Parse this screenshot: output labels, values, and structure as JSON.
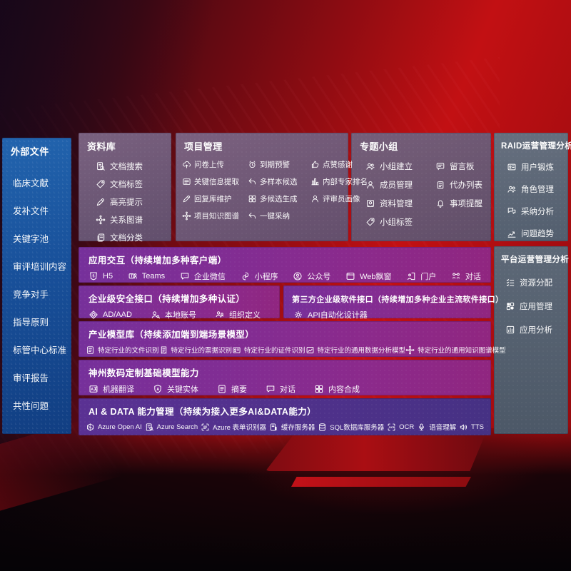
{
  "colors": {
    "background_red": "#b80e13",
    "sidebar_blue": "#1b57a3",
    "module_purple": "#842e93",
    "module_indigo": "#4d3187",
    "panel_mauve": "#6f5d7a",
    "panel_gray": "#5d6878",
    "text": "#ffffff"
  },
  "sidebar": {
    "title": "外部文件",
    "items": [
      {
        "label": "临床文献"
      },
      {
        "label": "发补文件"
      },
      {
        "label": "关键字池"
      },
      {
        "label": "审评培训内容"
      },
      {
        "label": "竞争对手"
      },
      {
        "label": "指导原则"
      },
      {
        "label": "标管中心标准"
      },
      {
        "label": "审评报告"
      },
      {
        "label": "共性问题"
      }
    ]
  },
  "panels": {
    "library": {
      "title": "资料库",
      "items": [
        {
          "icon": "doc-search",
          "label": "文档搜索"
        },
        {
          "icon": "tag",
          "label": "文档标签"
        },
        {
          "icon": "pencil",
          "label": "高亮提示"
        },
        {
          "icon": "node-graph",
          "label": "关系图谱"
        },
        {
          "icon": "doc-copy",
          "label": "文档分类"
        }
      ]
    },
    "project": {
      "title": "项目管理",
      "items": [
        {
          "icon": "cloud-upload",
          "label": "问卷上传"
        },
        {
          "icon": "alarm-clock",
          "label": "到期预警"
        },
        {
          "icon": "thumbs-up",
          "label": "点赞感谢"
        },
        {
          "icon": "info-card",
          "label": "关键信息提取"
        },
        {
          "icon": "reply-arrow",
          "label": "多样本候选"
        },
        {
          "icon": "bar-chart",
          "label": "内部专家排名"
        },
        {
          "icon": "pencil",
          "label": "回复库维护"
        },
        {
          "icon": "grid-four",
          "label": "多候选生成"
        },
        {
          "icon": "user",
          "label": "评审员画像"
        },
        {
          "icon": "node-graph",
          "label": "项目知识图谱"
        },
        {
          "icon": "reply-arrow",
          "label": "一键采纳"
        }
      ]
    },
    "groups": {
      "title": "专题小组",
      "items": [
        {
          "icon": "user-group",
          "label": "小组建立"
        },
        {
          "icon": "message-board",
          "label": "留言板"
        },
        {
          "icon": "user",
          "label": "成员管理"
        },
        {
          "icon": "clipboard",
          "label": "代办列表"
        },
        {
          "icon": "photo-album",
          "label": "资料管理"
        },
        {
          "icon": "bell",
          "label": "事项提醒"
        },
        {
          "icon": "tag",
          "label": "小组标签"
        }
      ]
    },
    "raid": {
      "title": "RAID运营管理分析",
      "items": [
        {
          "icon": "id-card",
          "label": "用户锻炼"
        },
        {
          "icon": "user-group",
          "label": "角色管理"
        },
        {
          "icon": "qa-bubbles",
          "label": "采纳分析"
        },
        {
          "icon": "trend-line",
          "label": "问题趋势"
        }
      ]
    },
    "platform": {
      "title": "平台运营管理分析",
      "items": [
        {
          "icon": "check-list",
          "label": "资源分配"
        },
        {
          "icon": "app-grid",
          "label": "应用管理"
        },
        {
          "icon": "report-chart",
          "label": "应用分析"
        }
      ]
    },
    "interaction": {
      "title": "应用交互（持续增加多种客户端）",
      "items": [
        {
          "icon": "html5-badge",
          "label": "H5"
        },
        {
          "icon": "teams-logo",
          "label": "Teams"
        },
        {
          "icon": "chat-bubble",
          "label": "企业微信"
        },
        {
          "icon": "mini-program",
          "label": "小程序"
        },
        {
          "icon": "user-circle",
          "label": "公众号"
        },
        {
          "icon": "browser-window",
          "label": "Web飘窗"
        },
        {
          "icon": "portal-user",
          "label": "门户"
        },
        {
          "icon": "chat-link",
          "label": "对话"
        }
      ]
    },
    "security": {
      "title": "企业级安全接口（持续增加多种认证）",
      "items": [
        {
          "icon": "diamond-badge",
          "label": "AD/AAD"
        },
        {
          "icon": "user-key",
          "label": "本地账号"
        },
        {
          "icon": "org-users",
          "label": "组织定义"
        }
      ]
    },
    "thirdparty": {
      "title": "第三方企业级软件接口（持续增加多种企业主流软件接口）",
      "items": [
        {
          "icon": "api-gear",
          "label": "API自动化设计器"
        }
      ]
    },
    "models": {
      "title": "产业模型库（持续添加端到端场景模型）",
      "items": [
        {
          "icon": "doc-file",
          "label": "特定行业的文件识别"
        },
        {
          "icon": "receipt",
          "label": "特定行业的票据识别"
        },
        {
          "icon": "id-card",
          "label": "特定行业的证件识别"
        },
        {
          "icon": "image-chart",
          "label": "特定行业的通用数据分析模型"
        },
        {
          "icon": "node-graph",
          "label": "特定行业的通用知识图谱模型"
        }
      ]
    },
    "foundation": {
      "title": "神州数码定制基础模型能力",
      "items": [
        {
          "icon": "translate-card",
          "label": "机器翻译"
        },
        {
          "icon": "shield-a",
          "label": "关键实体"
        },
        {
          "icon": "doc-file",
          "label": "摘要"
        },
        {
          "icon": "chat-bubble",
          "label": "对话"
        },
        {
          "icon": "grid-four",
          "label": "内容合成"
        }
      ]
    },
    "aidata": {
      "title": "AI & DATA 能力管理（持续为接入更多AI&DATA能力）",
      "items": [
        {
          "icon": "openai-logo",
          "label": "Azure Open AI"
        },
        {
          "icon": "doc-magnifier",
          "label": "Azure Search"
        },
        {
          "icon": "scan-form",
          "label": "Azure 表单识别器"
        },
        {
          "icon": "cache-server",
          "label": "缓存服务器"
        },
        {
          "icon": "database",
          "label": "SQL数据库服务器"
        },
        {
          "icon": "ocr-scan",
          "label": "OCR"
        },
        {
          "icon": "microphone",
          "label": "语音理解"
        },
        {
          "icon": "speaker",
          "label": "TTS"
        }
      ]
    }
  }
}
